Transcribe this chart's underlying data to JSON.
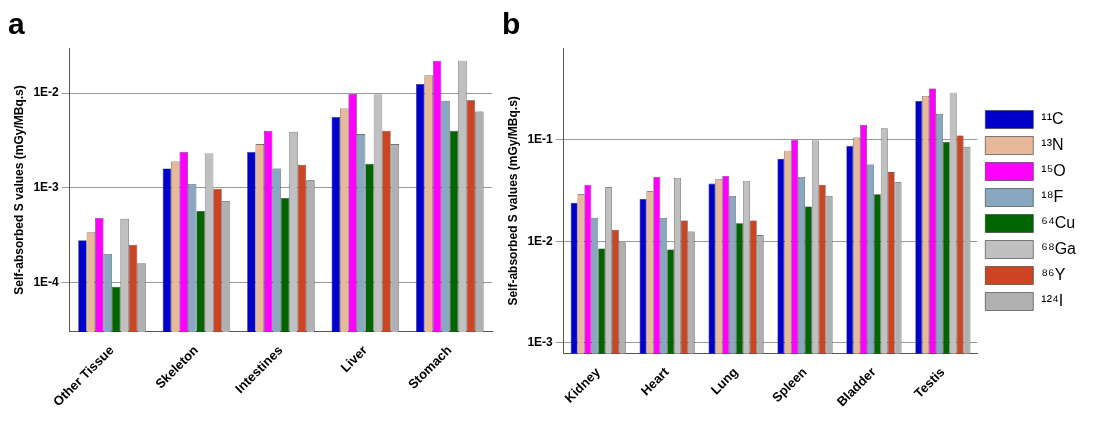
{
  "chart_data": [
    {
      "type": "bar",
      "title": "a",
      "ylabel": "Self-absorbed S values (mGy/MBq.s)",
      "categories": [
        "Other Tissue",
        "Skeleton",
        "Intestines",
        "Liver",
        "Stomach"
      ],
      "log": true,
      "grid": "y",
      "legend": false,
      "ylim": [
        3e-05,
        0.03
      ],
      "yticks": [
        {
          "value": 0.0001,
          "label": "1E-4"
        },
        {
          "value": 0.001,
          "label": "1E-3"
        },
        {
          "value": 0.01,
          "label": "1E-2"
        }
      ],
      "series": [
        {
          "color": "#0000cc",
          "values": [
            0.00028,
            0.0016,
            0.0024,
            0.0056,
            0.0125
          ]
        },
        {
          "color": "#e8b89a",
          "values": [
            0.00034,
            0.0019,
            0.0029,
            0.0069,
            0.0155
          ]
        },
        {
          "color": "#ff00ff",
          "values": [
            0.00048,
            0.0024,
            0.004,
            0.0098,
            0.022
          ]
        },
        {
          "color": "#87a8c0",
          "values": [
            0.0002,
            0.0011,
            0.0016,
            0.0037,
            0.0083
          ]
        },
        {
          "color": "#006400",
          "values": [
            9e-05,
            0.00057,
            0.00078,
            0.0018,
            0.004
          ]
        },
        {
          "color": "#c0c0c0",
          "values": [
            0.00047,
            0.0023,
            0.0039,
            0.0097,
            0.022
          ]
        },
        {
          "color": "#cc4422",
          "values": [
            0.00025,
            0.00098,
            0.00175,
            0.004,
            0.0084
          ]
        },
        {
          "color": "#b0b0b0",
          "values": [
            0.00016,
            0.00072,
            0.0012,
            0.0029,
            0.0064
          ]
        }
      ]
    },
    {
      "type": "bar",
      "title": "b",
      "ylabel": "Self-absorbed S values (mGy/MBq.s)",
      "categories": [
        "Kidney",
        "Heart",
        "Lung",
        "Spleen",
        "Bladder",
        "Testis"
      ],
      "log": true,
      "grid": "y",
      "legend": "right",
      "ylim": [
        0.00078,
        0.8
      ],
      "yticks": [
        {
          "value": 0.001,
          "label": "1E-3"
        },
        {
          "value": 0.01,
          "label": "1E-2"
        },
        {
          "value": 0.1,
          "label": "1E-1"
        }
      ],
      "series": [
        {
          "name": "¹¹C",
          "color": "#0000cc",
          "values": [
            0.024,
            0.026,
            0.037,
            0.065,
            0.087,
            0.24
          ]
        },
        {
          "name": "¹³N",
          "color": "#e8b89a",
          "values": [
            0.029,
            0.031,
            0.041,
            0.078,
            0.105,
            0.27
          ]
        },
        {
          "name": "¹⁵O",
          "color": "#ff00ff",
          "values": [
            0.036,
            0.043,
            0.044,
            0.1,
            0.14,
            0.32
          ]
        },
        {
          "name": "¹⁸F",
          "color": "#87a8c0",
          "values": [
            0.017,
            0.017,
            0.028,
            0.043,
            0.057,
            0.18
          ]
        },
        {
          "name": "⁶⁴Cu",
          "color": "#006400",
          "values": [
            0.0085,
            0.0083,
            0.015,
            0.022,
            0.029,
            0.095
          ]
        },
        {
          "name": "⁶⁸Ga",
          "color": "#c0c0c0",
          "values": [
            0.034,
            0.042,
            0.039,
            0.098,
            0.13,
            0.29
          ]
        },
        {
          "name": "⁸⁶Y",
          "color": "#cc4422",
          "values": [
            0.013,
            0.016,
            0.016,
            0.036,
            0.048,
            0.11
          ]
        },
        {
          "name": "¹²⁴I",
          "color": "#b0b0b0",
          "values": [
            0.0098,
            0.0125,
            0.0115,
            0.028,
            0.038,
            0.085
          ]
        }
      ]
    }
  ]
}
